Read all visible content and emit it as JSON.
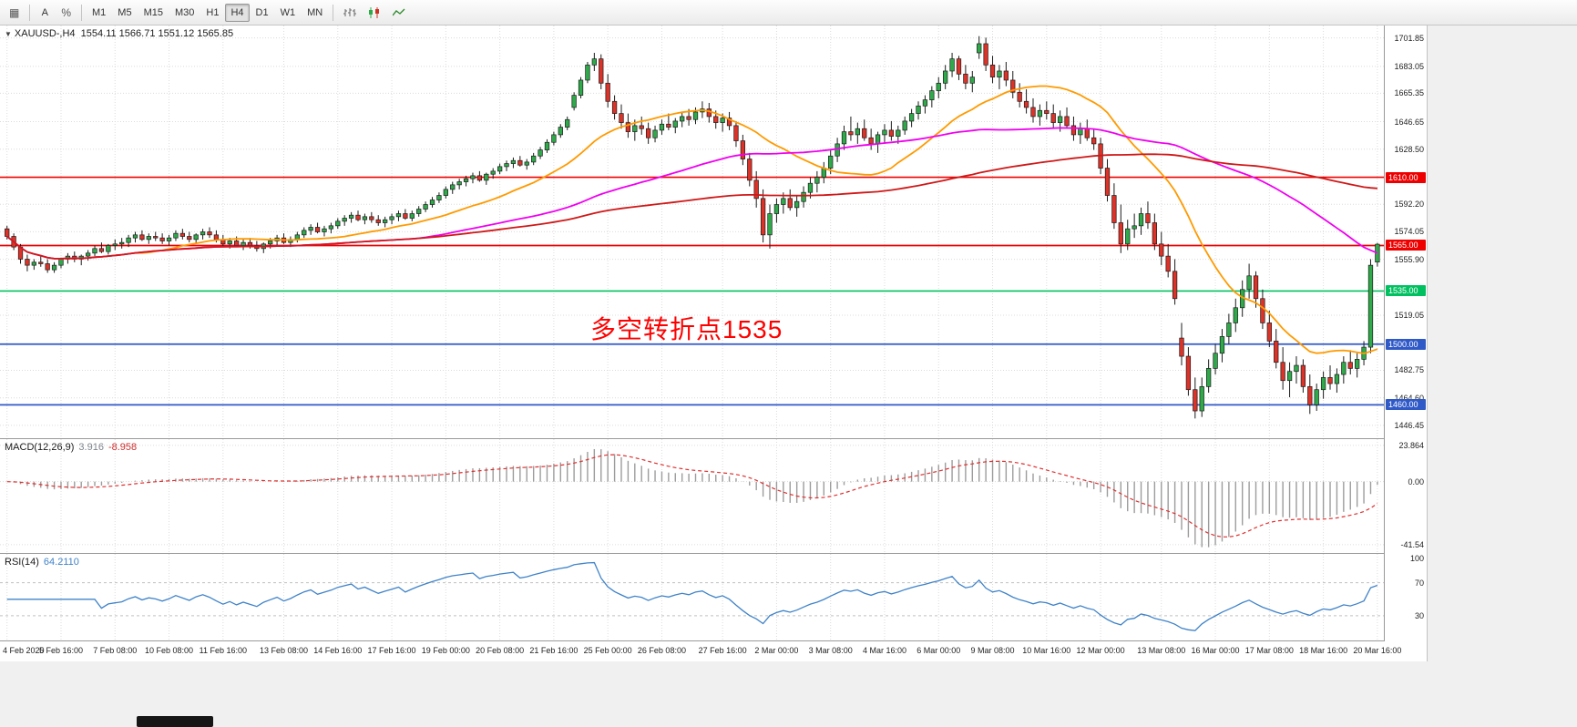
{
  "toolbar": {
    "grid_icon_char": "▦",
    "text_tool_label": "A",
    "percent_label": "%",
    "timeframes": [
      "M1",
      "M5",
      "M15",
      "M30",
      "H1",
      "H4",
      "D1",
      "W1",
      "MN"
    ],
    "active_timeframe": "H4"
  },
  "chart": {
    "symbol_dropdown_char": "▼",
    "symbol_label": "XAUUSD-,H4",
    "ohlc_text": "1554.11 1566.71 1551.12 1565.85",
    "annotation": {
      "text": "多空转折点1535",
      "color": "#ff0000"
    }
  },
  "chart_data": {
    "type": "candlestick",
    "symbol": "XAUUSD-",
    "timeframe": "H4",
    "open": 1554.11,
    "high": 1566.71,
    "low": 1551.12,
    "close": 1565.85,
    "colors": {
      "up": "#2faa4a",
      "down": "#dd3228",
      "outline": "#1c1c1c",
      "grid": "#dcdcdc",
      "histogram": "#9c9c9c",
      "signal": "#e03030",
      "rsi": "#3f83c9",
      "background": "#ffffff"
    },
    "price_axis": {
      "max": 1710,
      "min": 1438,
      "labels": [
        "1701.85",
        "1683.05",
        "1665.35",
        "1646.65",
        "1628.50",
        "1592.20",
        "1574.05",
        "1555.90",
        "1519.05",
        "1482.75",
        "1464.60",
        "1446.45"
      ]
    },
    "hlines": [
      {
        "price": 1610.0,
        "label": "1610.00",
        "color": "#ee0000"
      },
      {
        "price": 1565.0,
        "label": "1565.00",
        "color": "#ee0000"
      },
      {
        "price": 1535.0,
        "label": "1535.00",
        "color": "#00c060"
      },
      {
        "price": 1500.0,
        "label": "1500.00",
        "color": "#3059c8"
      },
      {
        "price": 1460.0,
        "label": "1460.00",
        "color": "#3059c8"
      }
    ],
    "moving_averages": [
      {
        "name": "ma-fast",
        "period": 20,
        "color": "#ff9a00"
      },
      {
        "name": "ma-mid",
        "period": 60,
        "color": "#f000f0"
      },
      {
        "name": "ma-slow",
        "period": 130,
        "color": "#d01818"
      }
    ],
    "indicators": {
      "macd": {
        "label": "MACD(12,26,9)",
        "value": "3.916",
        "signal_value": "-8.958",
        "axis_labels": [
          "23.864",
          "0.00",
          "-41.54"
        ],
        "range": [
          28,
          -47
        ]
      },
      "rsi": {
        "label": "RSI(14)",
        "value": "64.2110",
        "axis_labels": [
          "100",
          "70",
          "30"
        ],
        "levels": [
          70,
          30
        ],
        "range": [
          105,
          0
        ]
      }
    },
    "time_labels": [
      "4 Feb 2020",
      "5 Feb 16:00",
      "7 Feb 08:00",
      "10 Feb 08:00",
      "11 Feb 16:00",
      "13 Feb 08:00",
      "14 Feb 16:00",
      "17 Feb 16:00",
      "19 Feb 00:00",
      "20 Feb 08:00",
      "21 Feb 16:00",
      "25 Feb 00:00",
      "26 Feb 08:00",
      "27 Feb 16:00",
      "2 Mar 00:00",
      "3 Mar 08:00",
      "4 Mar 16:00",
      "6 Mar 00:00",
      "9 Mar 08:00",
      "10 Mar 16:00",
      "12 Mar 00:00",
      "13 Mar 08:00",
      "16 Mar 00:00",
      "17 Mar 08:00",
      "18 Mar 16:00",
      "20 Mar 16:00"
    ],
    "candles": [
      [
        1576,
        1578,
        1569,
        1571
      ],
      [
        1571,
        1573,
        1562,
        1564
      ],
      [
        1564,
        1566,
        1553,
        1556
      ],
      [
        1556,
        1559,
        1548,
        1552
      ],
      [
        1552,
        1556,
        1549,
        1554
      ],
      [
        1554,
        1558,
        1551,
        1553
      ],
      [
        1553,
        1556,
        1547,
        1549
      ],
      [
        1549,
        1554,
        1547,
        1552
      ],
      [
        1552,
        1557,
        1550,
        1556
      ],
      [
        1556,
        1560,
        1553,
        1558
      ],
      [
        1558,
        1561,
        1554,
        1556
      ],
      [
        1556,
        1559,
        1552,
        1558
      ],
      [
        1558,
        1562,
        1555,
        1560
      ],
      [
        1560,
        1565,
        1558,
        1563
      ],
      [
        1563,
        1567,
        1560,
        1561
      ],
      [
        1561,
        1566,
        1559,
        1565
      ],
      [
        1565,
        1569,
        1562,
        1566
      ],
      [
        1566,
        1570,
        1563,
        1567
      ],
      [
        1567,
        1572,
        1564,
        1570
      ],
      [
        1570,
        1574,
        1567,
        1572
      ],
      [
        1572,
        1575,
        1568,
        1569
      ],
      [
        1569,
        1573,
        1566,
        1571
      ],
      [
        1571,
        1574,
        1568,
        1570
      ],
      [
        1570,
        1573,
        1566,
        1568
      ],
      [
        1568,
        1572,
        1565,
        1570
      ],
      [
        1570,
        1575,
        1568,
        1573
      ],
      [
        1573,
        1576,
        1569,
        1571
      ],
      [
        1571,
        1574,
        1567,
        1569
      ],
      [
        1569,
        1573,
        1566,
        1572
      ],
      [
        1572,
        1576,
        1569,
        1574
      ],
      [
        1574,
        1577,
        1570,
        1572
      ],
      [
        1572,
        1575,
        1567,
        1569
      ],
      [
        1569,
        1572,
        1564,
        1566
      ],
      [
        1566,
        1570,
        1563,
        1568
      ],
      [
        1568,
        1571,
        1564,
        1565
      ],
      [
        1565,
        1569,
        1562,
        1567
      ],
      [
        1567,
        1570,
        1563,
        1565
      ],
      [
        1565,
        1568,
        1561,
        1563
      ],
      [
        1563,
        1567,
        1560,
        1566
      ],
      [
        1566,
        1570,
        1563,
        1568
      ],
      [
        1568,
        1572,
        1565,
        1570
      ],
      [
        1570,
        1573,
        1566,
        1567
      ],
      [
        1567,
        1571,
        1564,
        1569
      ],
      [
        1569,
        1574,
        1567,
        1572
      ],
      [
        1572,
        1577,
        1570,
        1575
      ],
      [
        1575,
        1579,
        1572,
        1577
      ],
      [
        1577,
        1580,
        1573,
        1574
      ],
      [
        1574,
        1578,
        1571,
        1576
      ],
      [
        1576,
        1580,
        1573,
        1578
      ],
      [
        1578,
        1583,
        1576,
        1581
      ],
      [
        1581,
        1585,
        1578,
        1583
      ],
      [
        1583,
        1587,
        1580,
        1585
      ],
      [
        1585,
        1588,
        1581,
        1582
      ],
      [
        1582,
        1586,
        1579,
        1584
      ],
      [
        1584,
        1587,
        1580,
        1582
      ],
      [
        1582,
        1585,
        1578,
        1580
      ],
      [
        1580,
        1584,
        1577,
        1582
      ],
      [
        1582,
        1586,
        1579,
        1584
      ],
      [
        1584,
        1588,
        1581,
        1586
      ],
      [
        1586,
        1589,
        1582,
        1583
      ],
      [
        1583,
        1588,
        1581,
        1586
      ],
      [
        1586,
        1591,
        1584,
        1589
      ],
      [
        1589,
        1594,
        1587,
        1592
      ],
      [
        1592,
        1597,
        1590,
        1595
      ],
      [
        1595,
        1600,
        1593,
        1598
      ],
      [
        1598,
        1604,
        1596,
        1602
      ],
      [
        1602,
        1607,
        1599,
        1605
      ],
      [
        1605,
        1609,
        1602,
        1607
      ],
      [
        1607,
        1611,
        1604,
        1609
      ],
      [
        1609,
        1613,
        1606,
        1611
      ],
      [
        1611,
        1614,
        1607,
        1608
      ],
      [
        1608,
        1613,
        1605,
        1612
      ],
      [
        1612,
        1616,
        1609,
        1614
      ],
      [
        1614,
        1619,
        1612,
        1617
      ],
      [
        1617,
        1621,
        1614,
        1619
      ],
      [
        1619,
        1623,
        1616,
        1621
      ],
      [
        1621,
        1624,
        1617,
        1618
      ],
      [
        1618,
        1622,
        1615,
        1620
      ],
      [
        1620,
        1626,
        1618,
        1624
      ],
      [
        1624,
        1630,
        1622,
        1628
      ],
      [
        1628,
        1635,
        1626,
        1633
      ],
      [
        1633,
        1640,
        1631,
        1638
      ],
      [
        1638,
        1645,
        1636,
        1643
      ],
      [
        1643,
        1650,
        1641,
        1648
      ],
      [
        1656,
        1666,
        1654,
        1664
      ],
      [
        1664,
        1676,
        1662,
        1674
      ],
      [
        1674,
        1686,
        1672,
        1684
      ],
      [
        1684,
        1692,
        1680,
        1688
      ],
      [
        1688,
        1691,
        1668,
        1672
      ],
      [
        1672,
        1678,
        1656,
        1660
      ],
      [
        1660,
        1664,
        1648,
        1652
      ],
      [
        1652,
        1658,
        1642,
        1646
      ],
      [
        1646,
        1652,
        1636,
        1640
      ],
      [
        1640,
        1648,
        1634,
        1644
      ],
      [
        1644,
        1650,
        1638,
        1642
      ],
      [
        1642,
        1646,
        1632,
        1636
      ],
      [
        1636,
        1644,
        1633,
        1641
      ],
      [
        1641,
        1648,
        1638,
        1645
      ],
      [
        1645,
        1652,
        1641,
        1643
      ],
      [
        1643,
        1649,
        1639,
        1647
      ],
      [
        1647,
        1653,
        1643,
        1650
      ],
      [
        1650,
        1655,
        1644,
        1648
      ],
      [
        1648,
        1656,
        1645,
        1653
      ],
      [
        1653,
        1660,
        1649,
        1655
      ],
      [
        1655,
        1659,
        1646,
        1650
      ],
      [
        1650,
        1654,
        1642,
        1646
      ],
      [
        1646,
        1652,
        1640,
        1649
      ],
      [
        1649,
        1653,
        1641,
        1644
      ],
      [
        1644,
        1647,
        1630,
        1634
      ],
      [
        1634,
        1638,
        1618,
        1622
      ],
      [
        1622,
        1626,
        1604,
        1608
      ],
      [
        1608,
        1614,
        1590,
        1596
      ],
      [
        1596,
        1602,
        1567,
        1572
      ],
      [
        1572,
        1592,
        1563,
        1586
      ],
      [
        1586,
        1596,
        1580,
        1592
      ],
      [
        1592,
        1600,
        1586,
        1596
      ],
      [
        1596,
        1602,
        1588,
        1590
      ],
      [
        1590,
        1598,
        1584,
        1594
      ],
      [
        1594,
        1604,
        1590,
        1600
      ],
      [
        1600,
        1610,
        1596,
        1606
      ],
      [
        1606,
        1614,
        1600,
        1610
      ],
      [
        1610,
        1620,
        1606,
        1616
      ],
      [
        1616,
        1628,
        1612,
        1624
      ],
      [
        1624,
        1636,
        1620,
        1632
      ],
      [
        1632,
        1644,
        1628,
        1640
      ],
      [
        1640,
        1650,
        1634,
        1638
      ],
      [
        1638,
        1646,
        1632,
        1642
      ],
      [
        1642,
        1648,
        1634,
        1636
      ],
      [
        1636,
        1642,
        1628,
        1632
      ],
      [
        1632,
        1640,
        1626,
        1638
      ],
      [
        1638,
        1645,
        1632,
        1641
      ],
      [
        1641,
        1647,
        1634,
        1637
      ],
      [
        1637,
        1644,
        1632,
        1641
      ],
      [
        1641,
        1650,
        1638,
        1647
      ],
      [
        1647,
        1655,
        1643,
        1652
      ],
      [
        1652,
        1660,
        1648,
        1657
      ],
      [
        1657,
        1664,
        1652,
        1661
      ],
      [
        1661,
        1670,
        1656,
        1667
      ],
      [
        1667,
        1676,
        1662,
        1672
      ],
      [
        1672,
        1684,
        1668,
        1680
      ],
      [
        1680,
        1692,
        1676,
        1688
      ],
      [
        1688,
        1690,
        1674,
        1678
      ],
      [
        1678,
        1684,
        1668,
        1672
      ],
      [
        1672,
        1680,
        1666,
        1676
      ],
      [
        1692,
        1703,
        1688,
        1698
      ],
      [
        1698,
        1702,
        1680,
        1684
      ],
      [
        1684,
        1690,
        1672,
        1676
      ],
      [
        1676,
        1684,
        1668,
        1680
      ],
      [
        1680,
        1686,
        1670,
        1674
      ],
      [
        1674,
        1680,
        1662,
        1666
      ],
      [
        1666,
        1672,
        1656,
        1660
      ],
      [
        1660,
        1668,
        1652,
        1656
      ],
      [
        1656,
        1662,
        1646,
        1650
      ],
      [
        1650,
        1658,
        1644,
        1654
      ],
      [
        1654,
        1660,
        1648,
        1652
      ],
      [
        1652,
        1658,
        1642,
        1646
      ],
      [
        1646,
        1654,
        1640,
        1650
      ],
      [
        1650,
        1656,
        1642,
        1644
      ],
      [
        1644,
        1650,
        1634,
        1638
      ],
      [
        1638,
        1646,
        1632,
        1642
      ],
      [
        1642,
        1648,
        1634,
        1636
      ],
      [
        1636,
        1642,
        1628,
        1632
      ],
      [
        1632,
        1636,
        1612,
        1616
      ],
      [
        1616,
        1622,
        1594,
        1598
      ],
      [
        1598,
        1606,
        1576,
        1580
      ],
      [
        1580,
        1592,
        1560,
        1566
      ],
      [
        1566,
        1582,
        1562,
        1576
      ],
      [
        1576,
        1586,
        1570,
        1578
      ],
      [
        1578,
        1590,
        1572,
        1586
      ],
      [
        1586,
        1594,
        1576,
        1580
      ],
      [
        1580,
        1586,
        1562,
        1566
      ],
      [
        1566,
        1574,
        1552,
        1558
      ],
      [
        1558,
        1566,
        1544,
        1548
      ],
      [
        1548,
        1556,
        1526,
        1530
      ],
      [
        1504,
        1514,
        1486,
        1492
      ],
      [
        1492,
        1498,
        1466,
        1470
      ],
      [
        1470,
        1478,
        1451,
        1456
      ],
      [
        1456,
        1478,
        1452,
        1472
      ],
      [
        1472,
        1490,
        1468,
        1484
      ],
      [
        1484,
        1500,
        1480,
        1494
      ],
      [
        1494,
        1510,
        1488,
        1505
      ],
      [
        1505,
        1520,
        1500,
        1514
      ],
      [
        1514,
        1530,
        1508,
        1524
      ],
      [
        1524,
        1542,
        1518,
        1536
      ],
      [
        1536,
        1553,
        1530,
        1545
      ],
      [
        1545,
        1548,
        1524,
        1530
      ],
      [
        1530,
        1536,
        1510,
        1514
      ],
      [
        1514,
        1522,
        1498,
        1502
      ],
      [
        1502,
        1510,
        1484,
        1488
      ],
      [
        1488,
        1498,
        1470,
        1476
      ],
      [
        1476,
        1488,
        1465,
        1482
      ],
      [
        1482,
        1492,
        1474,
        1486
      ],
      [
        1486,
        1490,
        1468,
        1472
      ],
      [
        1472,
        1480,
        1454,
        1460
      ],
      [
        1460,
        1474,
        1456,
        1470
      ],
      [
        1470,
        1482,
        1464,
        1478
      ],
      [
        1478,
        1486,
        1470,
        1474
      ],
      [
        1474,
        1484,
        1468,
        1480
      ],
      [
        1480,
        1492,
        1474,
        1488
      ],
      [
        1488,
        1496,
        1480,
        1484
      ],
      [
        1484,
        1494,
        1478,
        1490
      ],
      [
        1490,
        1502,
        1486,
        1498
      ],
      [
        1498,
        1556,
        1494,
        1552
      ],
      [
        1554.11,
        1566.71,
        1551.12,
        1565.85
      ]
    ]
  }
}
